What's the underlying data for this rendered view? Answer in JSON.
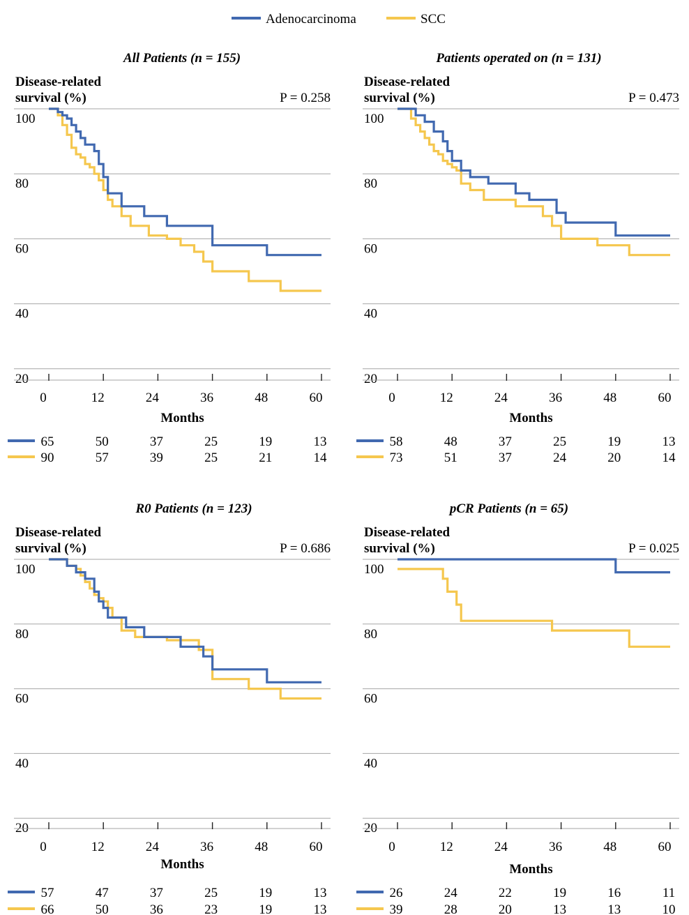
{
  "legend": {
    "items": [
      {
        "label": "Adenocarcinoma",
        "color": "#4169B0"
      },
      {
        "label": "SCC",
        "color": "#F5C74E"
      }
    ]
  },
  "chart_data": [
    {
      "type": "line",
      "title": "All Patients (n = 155)",
      "ylabel": [
        "Disease-related",
        "survival (%)"
      ],
      "xlabel": "Months",
      "p_value": "P = 0.258",
      "xlim": [
        0,
        60
      ],
      "ylim": [
        0,
        100
      ],
      "xticks": [
        "0",
        "12",
        "24",
        "36",
        "48",
        "60"
      ],
      "yticks": [
        "100",
        "80",
        "60",
        "40",
        "20"
      ],
      "grid": true,
      "series": [
        {
          "name": "Adenocarcinoma",
          "color": "#4169B0",
          "x": [
            0,
            2,
            3,
            4,
            5,
            6,
            7,
            8,
            10,
            11,
            12,
            13,
            16,
            21,
            26,
            36,
            48,
            60
          ],
          "y": [
            100,
            99,
            98,
            97,
            95,
            93,
            91,
            89,
            87,
            83,
            79,
            74,
            70,
            67,
            64,
            58,
            55,
            55
          ],
          "at_risk": [
            "65",
            "50",
            "37",
            "25",
            "19",
            "13"
          ]
        },
        {
          "name": "SCC",
          "color": "#F5C74E",
          "x": [
            0,
            2,
            3,
            4,
            5,
            6,
            7,
            8,
            9,
            10,
            11,
            12,
            13,
            14,
            16,
            18,
            22,
            26,
            29,
            32,
            34,
            36,
            44,
            51,
            60
          ],
          "y": [
            100,
            98,
            95,
            92,
            88,
            86,
            85,
            83,
            82,
            80,
            78,
            75,
            72,
            70,
            67,
            64,
            61,
            60,
            58,
            56,
            53,
            50,
            47,
            44,
            44
          ],
          "at_risk": [
            "90",
            "57",
            "39",
            "25",
            "21",
            "14"
          ]
        }
      ]
    },
    {
      "type": "line",
      "title": "Patients operated on (n = 131)",
      "ylabel": [
        "Disease-related",
        "survival (%)"
      ],
      "xlabel": "Months",
      "p_value": "P = 0.473",
      "xlim": [
        0,
        60
      ],
      "ylim": [
        0,
        100
      ],
      "xticks": [
        "0",
        "12",
        "24",
        "36",
        "48",
        "60"
      ],
      "yticks": [
        "100",
        "80",
        "60",
        "40",
        "20"
      ],
      "grid": true,
      "series": [
        {
          "name": "Adenocarcinoma",
          "color": "#4169B0",
          "x": [
            0,
            4,
            6,
            8,
            10,
            11,
            12,
            14,
            16,
            20,
            26,
            29,
            35,
            37,
            48,
            60
          ],
          "y": [
            100,
            98,
            96,
            93,
            90,
            87,
            84,
            81,
            79,
            77,
            74,
            72,
            68,
            65,
            61,
            61
          ],
          "at_risk": [
            "58",
            "48",
            "37",
            "25",
            "19",
            "13"
          ]
        },
        {
          "name": "SCC",
          "color": "#F5C74E",
          "x": [
            0,
            3,
            4,
            5,
            6,
            7,
            8,
            9,
            10,
            11,
            12,
            13,
            14,
            16,
            19,
            26,
            32,
            34,
            36,
            44,
            51,
            60
          ],
          "y": [
            100,
            97,
            95,
            93,
            91,
            89,
            87,
            86,
            84,
            83,
            82,
            81,
            77,
            75,
            72,
            70,
            67,
            64,
            60,
            58,
            55,
            55
          ],
          "at_risk": [
            "73",
            "51",
            "37",
            "24",
            "20",
            "14"
          ]
        }
      ]
    },
    {
      "type": "line",
      "title": "R0 Patients (n = 123)",
      "ylabel": [
        "Disease-related",
        "survival (%)"
      ],
      "xlabel": "Months",
      "p_value": "P = 0.686",
      "xlim": [
        0,
        60
      ],
      "ylim": [
        0,
        100
      ],
      "xticks": [
        "0",
        "12",
        "24",
        "36",
        "48",
        "60"
      ],
      "yticks": [
        "100",
        "80",
        "60",
        "40",
        "20"
      ],
      "grid": true,
      "series": [
        {
          "name": "Adenocarcinoma",
          "color": "#4169B0",
          "x": [
            0,
            4,
            6,
            8,
            10,
            11,
            12,
            13,
            17,
            21,
            29,
            34,
            36,
            48,
            60
          ],
          "y": [
            100,
            98,
            96,
            94,
            90,
            87,
            85,
            82,
            79,
            76,
            73,
            70,
            66,
            62,
            62
          ],
          "at_risk": [
            "57",
            "47",
            "37",
            "25",
            "19",
            "13"
          ]
        },
        {
          "name": "SCC",
          "color": "#F5C74E",
          "x": [
            0,
            4,
            6,
            7,
            8,
            9,
            10,
            11,
            12,
            13,
            14,
            16,
            19,
            26,
            33,
            36,
            44,
            51,
            60
          ],
          "y": [
            100,
            98,
            97,
            95,
            93,
            91,
            89,
            88,
            87,
            85,
            82,
            78,
            76,
            75,
            72,
            63,
            60,
            57,
            57
          ],
          "at_risk": [
            "66",
            "50",
            "36",
            "23",
            "19",
            "13"
          ]
        }
      ]
    },
    {
      "type": "line",
      "title": "pCR Patients (n = 65)",
      "ylabel": [
        "Disease-related",
        "survival (%)"
      ],
      "xlabel": "Months",
      "p_value": "P = 0.025",
      "xlim": [
        0,
        60
      ],
      "ylim": [
        0,
        100
      ],
      "xticks": [
        "0",
        "12",
        "24",
        "36",
        "48",
        "60"
      ],
      "yticks": [
        "100",
        "80",
        "60",
        "40",
        "20"
      ],
      "grid": true,
      "series": [
        {
          "name": "Adenocarcinoma",
          "color": "#4169B0",
          "x": [
            0,
            48,
            60
          ],
          "y": [
            100,
            96,
            96
          ],
          "at_risk": [
            "26",
            "24",
            "22",
            "19",
            "16",
            "11"
          ]
        },
        {
          "name": "SCC",
          "color": "#F5C74E",
          "x": [
            0,
            10,
            11,
            13,
            14,
            34,
            51,
            60
          ],
          "y": [
            97,
            94,
            90,
            86,
            81,
            78,
            73,
            73
          ],
          "at_risk": [
            "39",
            "28",
            "20",
            "13",
            "13",
            "10"
          ]
        }
      ]
    }
  ]
}
